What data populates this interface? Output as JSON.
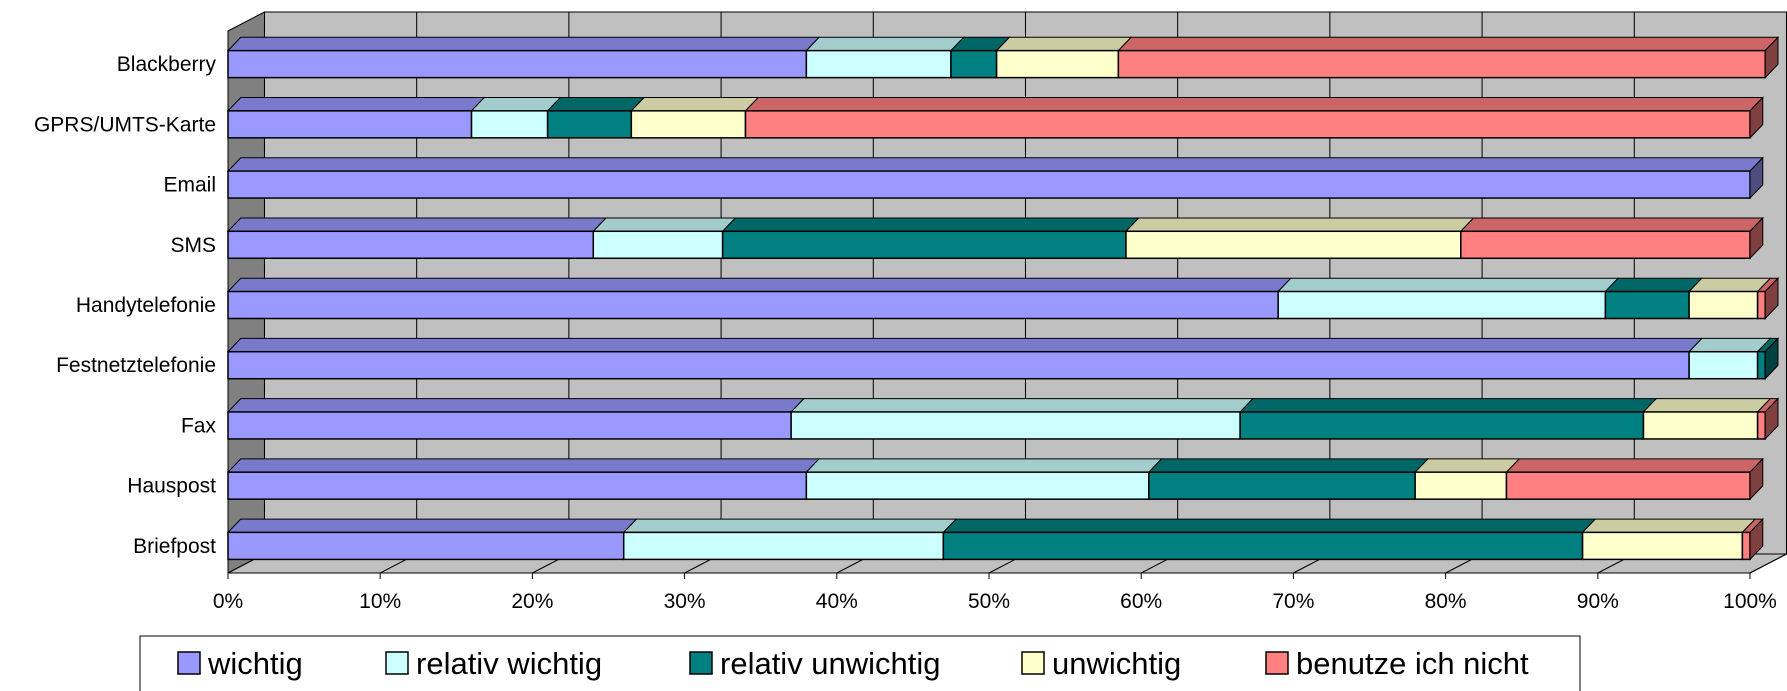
{
  "chart_data": {
    "type": "bar",
    "orientation": "horizontal",
    "stacked": "percent",
    "style": "3d",
    "categories": [
      "Briefpost",
      "Hauspost",
      "Fax",
      "Festnetztelefonie",
      "Handytelefonie",
      "SMS",
      "Email",
      "GPRS/UMTS-Karte",
      "Blackberry"
    ],
    "series": [
      {
        "name": "wichtig",
        "color": "#9999ff",
        "values": [
          26,
          38,
          37,
          96,
          69,
          24,
          100,
          16,
          38
        ]
      },
      {
        "name": "relativ wichtig",
        "color": "#ccffff",
        "values": [
          21,
          22.5,
          29.5,
          4.5,
          21.5,
          8.5,
          0,
          5,
          9.5
        ]
      },
      {
        "name": "relativ unwichtig",
        "color": "#008080",
        "values": [
          42,
          17.5,
          26.5,
          0.5,
          5.5,
          26.5,
          0,
          5.5,
          3
        ]
      },
      {
        "name": "unwichtig",
        "color": "#ffffcc",
        "values": [
          10.5,
          6,
          7.5,
          0,
          4.5,
          22,
          0,
          7.5,
          8
        ]
      },
      {
        "name": "benutze ich nicht",
        "color": "#ff8080",
        "values": [
          0.5,
          16,
          0.5,
          0,
          0.5,
          19,
          0,
          66,
          42.5
        ]
      }
    ],
    "x_ticks": [
      "0%",
      "10%",
      "20%",
      "30%",
      "40%",
      "50%",
      "60%",
      "70%",
      "80%",
      "90%",
      "100%"
    ],
    "xlim": [
      0,
      100
    ],
    "xlabel": "",
    "ylabel": "",
    "grid": true,
    "wall_color": "#c0c0c0",
    "floor_color": "#c0c0c0",
    "side_wall_color": "#808080",
    "legend_position": "bottom"
  }
}
